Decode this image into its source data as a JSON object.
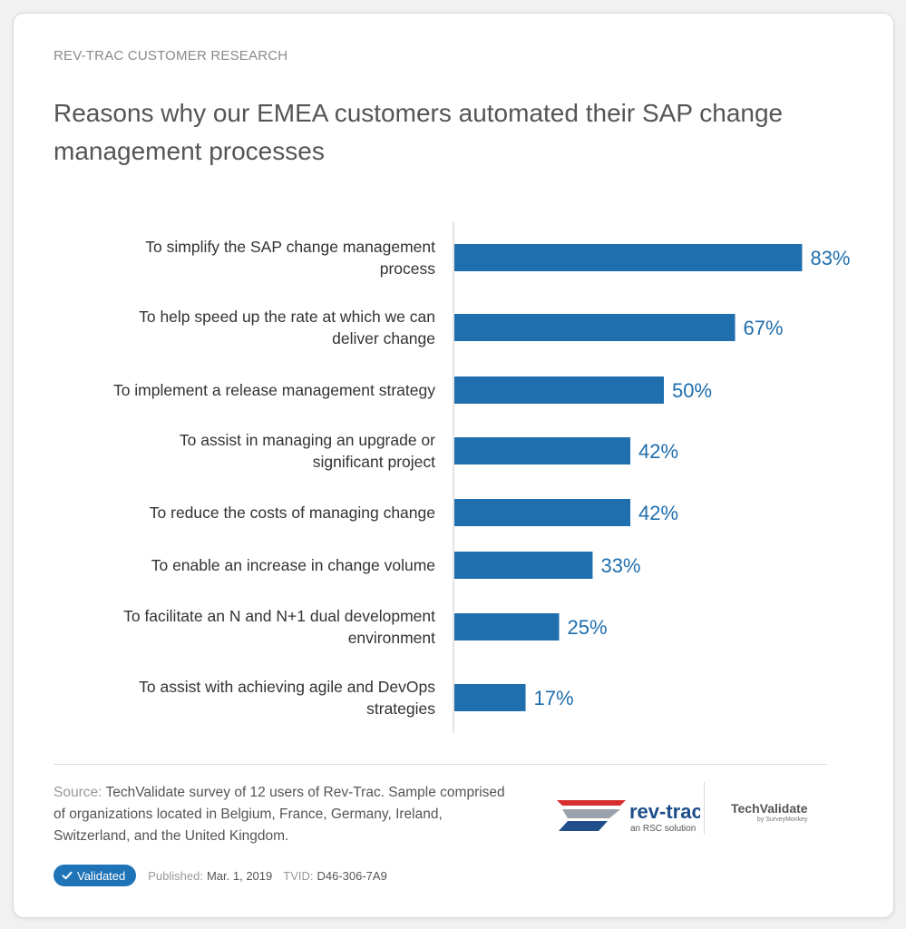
{
  "header": {
    "eyebrow": "REV-TRAC CUSTOMER RESEARCH",
    "title": "Reasons why our EMEA customers automated their SAP change management processes"
  },
  "chart_data": {
    "type": "bar",
    "orientation": "horizontal",
    "title": "Reasons why our EMEA customers automated their SAP change management processes",
    "categories": [
      [
        "To simplify the SAP change management",
        "process"
      ],
      [
        "To help speed up the rate at which we can",
        "deliver change"
      ],
      [
        "To implement a release management strategy"
      ],
      [
        "To assist in managing an upgrade or",
        "significant project"
      ],
      [
        "To reduce the costs of managing change"
      ],
      [
        "To enable an increase in change volume"
      ],
      [
        "To facilitate an N and N+1 dual development",
        "environment"
      ],
      [
        "To assist with achieving agile and DevOps",
        "strategies"
      ]
    ],
    "values": [
      83,
      67,
      50,
      42,
      42,
      33,
      25,
      17
    ],
    "value_labels": [
      "83%",
      "67%",
      "50%",
      "42%",
      "42%",
      "33%",
      "25%",
      "17%"
    ],
    "unit": "%",
    "xlim": [
      0,
      100
    ],
    "bar_color": "#1f6ead",
    "label_color": "#1f6ead",
    "grid": false
  },
  "footer": {
    "source_label": "Source:",
    "source_text": "TechValidate survey of 12 users of Rev-Trac. Sample comprised of organizations located in Belgium, France, Germany, Ireland, Switzerland, and the United Kingdom.",
    "badge": "Validated",
    "published_label": "Published:",
    "published_value": "Mar. 1, 2019",
    "tvid_label": "TVID:",
    "tvid_value": "D46-306-7A9"
  },
  "logos": {
    "revtrac_name": "rev-trac",
    "revtrac_tagline": "an RSC solution",
    "techvalidate_name": "TechValidate",
    "techvalidate_sub": "by SurveyMonkey"
  },
  "colors": {
    "accent": "#1f6ead",
    "badge": "#1f73b7"
  }
}
